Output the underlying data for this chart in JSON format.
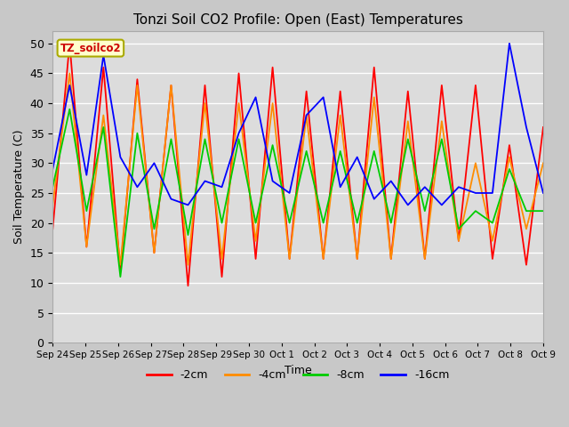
{
  "title": "Tonzi Soil CO2 Profile: Open (East) Temperatures",
  "ylabel": "Soil Temperature (C)",
  "xlabel": "Time",
  "annotation": "TZ_soilco2",
  "ylim": [
    0,
    52
  ],
  "yticks": [
    0,
    5,
    10,
    15,
    20,
    25,
    30,
    35,
    40,
    45,
    50
  ],
  "colors": {
    "-2cm": "#ff0000",
    "-4cm": "#ff8c00",
    "-8cm": "#00cc00",
    "-16cm": "#0000ff"
  },
  "legend_labels": [
    "-2cm",
    "-4cm",
    "-8cm",
    "-16cm"
  ],
  "bg_color": "#dcdcdc",
  "fig_color": "#c8c8c8",
  "x_tick_labels": [
    "Sep 24",
    "Sep 25",
    "Sep 26",
    "Sep 27",
    "Sep 28",
    "Sep 29",
    "Sep 30",
    "Oct 1",
    "Oct 2",
    "Oct 3",
    "Oct 4",
    "Oct 5",
    "Oct 6",
    "Oct 7",
    "Oct 8",
    "Oct 9"
  ],
  "series": {
    "-2cm": [
      19,
      50,
      16,
      46,
      12,
      44,
      15,
      43,
      9.5,
      43,
      11,
      45,
      14,
      46,
      14,
      42,
      14,
      42,
      14,
      46,
      14,
      42,
      14,
      43,
      17,
      43,
      14,
      33,
      13,
      36
    ],
    "-4cm": [
      23,
      45,
      16,
      38,
      13,
      43,
      15,
      43,
      13,
      40,
      14,
      40,
      17,
      40,
      14,
      38,
      14,
      38,
      14,
      41,
      14,
      37,
      14,
      37,
      17,
      30,
      17,
      31,
      19,
      30
    ],
    "-8cm": [
      26,
      39,
      22,
      36,
      11,
      35,
      19,
      34,
      18,
      34,
      20,
      34,
      20,
      33,
      20,
      32,
      20,
      32,
      20,
      32,
      20,
      34,
      22,
      34,
      19,
      22,
      20,
      29,
      22,
      22
    ],
    "-16cm": [
      29,
      43,
      28,
      48,
      31,
      26,
      30,
      24,
      23,
      27,
      26,
      35,
      41,
      27,
      25,
      38,
      41,
      26,
      31,
      24,
      27,
      23,
      26,
      23,
      26,
      25,
      25,
      50,
      36,
      25
    ]
  }
}
